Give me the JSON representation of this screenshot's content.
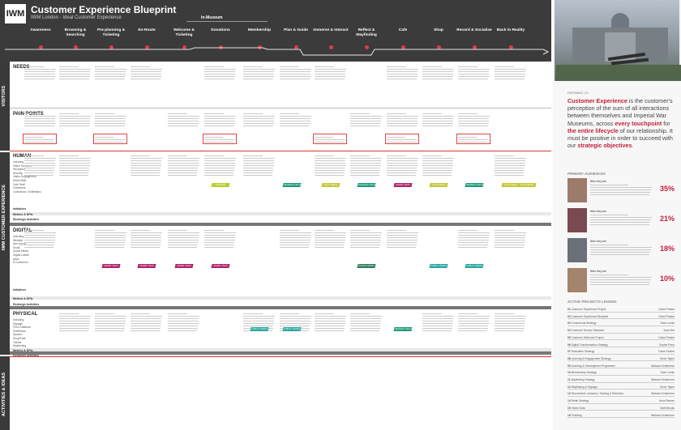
{
  "header": {
    "logo_text": "IWM",
    "title": "Customer Experience Blueprint",
    "subtitle": "IWM London - Ideal Customer Experience",
    "in_museum_label": "In-Museum",
    "stages": [
      "Awareness",
      "Browsing & Searching",
      "Pre-planning & Ticketing",
      "En-Route",
      "Welcome & Ticketing",
      "Donations",
      "Membership",
      "Plan & Guide",
      "Immerse & Interact",
      "Reflect & Wayfinding",
      "Cafe",
      "Shop",
      "Record & Socialise",
      "Back to Reality"
    ]
  },
  "left_tabs": {
    "visitors": "VISITORS",
    "iwm": "IWM CUSTOMER EXPERIENCE",
    "activities": "ACTIVITIES & IDEAS"
  },
  "rows": {
    "needs": "NEEDS",
    "pain_points": "PAIN POINTS",
    "human": "HUMAN",
    "human_sub": "Including\nVisitor Services\nReception\nSecurity\nVisitor Engagement\nRetail Staff\nCafe Staff\nVolunteers\nCollections / Exhibitions",
    "digital": "DIGITAL",
    "digital_sub": "Including\nWebsite\niwm.org.uk\nEmail\nSocial Media\nDigital Labels\nApps\nE-commerce",
    "physical": "PHYSICAL",
    "physical_sub": "Including\nSignage\nPrint Collateral\nExhibitions\nSpaces\nShop/Cafe\nTickets\nWayfinding",
    "initiatives": "Initiatives",
    "metrics": "Metrics & KPIs",
    "redesign": "Redesign Activities"
  },
  "tags": {
    "human": [
      "Gratitude",
      "Hardware Need",
      "Core Values",
      "Hardware Need",
      "Mobile Youth",
      "Core Values",
      "Hardware Need",
      "Core Values",
      "Core Values"
    ],
    "digital": [
      "Mobile Youth",
      "Mobile Youth",
      "Mobile Youth",
      "Mobile Youth",
      "School Visitors",
      "Culture Visitors",
      "Culture Visitors"
    ],
    "physical": [
      "Culture Visitors",
      "Culture Visitors",
      "Hardware Need"
    ]
  },
  "sidebar": {
    "defining_label": "DEFINING CX",
    "definition_parts": [
      "Customer Experience",
      " is the customer's perception of the sum of all interactions between themselves and Imperial War Museums, across ",
      "every touchpoint",
      " for ",
      "the entire lifecycle",
      " of our relationship. It must be positive in order to succeed with our ",
      "strategic objectives",
      "."
    ],
    "audiences_heading": "PRIMARY AUDIENCES",
    "audiences": [
      {
        "pct": "35%",
        "label": "Who they are"
      },
      {
        "pct": "21%",
        "label": "Who they are"
      },
      {
        "pct": "18%",
        "label": "Who they are"
      },
      {
        "pct": "10%",
        "label": "Who they are"
      }
    ],
    "legend_heading": "ACTIVE PROJECTS LEGEND",
    "legend": [
      {
        "num": "01",
        "name": "Customer Experience Project",
        "owner": "David Parkes"
      },
      {
        "num": "02",
        "name": "Customer Experience Blueprint",
        "owner": "David Parkes"
      },
      {
        "num": "03",
        "name": "Commercial Strategy",
        "owner": "Dave Leeks"
      },
      {
        "num": "04",
        "name": "Customer Service Standard",
        "owner": "Jane Kirk"
      },
      {
        "num": "05",
        "name": "Customer Welcome Project",
        "owner": "David Parkes"
      },
      {
        "num": "06",
        "name": "Digital Transformation Strategy",
        "owner": "Sophie Perry"
      },
      {
        "num": "07",
        "name": "Evaluation Strategy",
        "owner": "David Parkes"
      },
      {
        "num": "08",
        "name": "Learning & Engagement Strategy",
        "owner": "Kevin Taylor"
      },
      {
        "num": "09",
        "name": "Learning & Development Programme",
        "owner": "Barbara Scharmere"
      },
      {
        "num": "10",
        "name": "Membership Strategy",
        "owner": "Dave Leeks"
      },
      {
        "num": "11",
        "name": "Wayfinding Strategy",
        "owner": "Barbara Scharmere"
      },
      {
        "num": "12",
        "name": "Wayfinding & Signage",
        "owner": "Kevin Taylor"
      },
      {
        "num": "13",
        "name": "Recruitment, Induction, Training & Retention",
        "owner": "Barbara Scharmere"
      },
      {
        "num": "14",
        "name": "Retail Strategy",
        "owner": "Anne Barnes"
      },
      {
        "num": "15",
        "name": "Visitor Data",
        "owner": "Matt Brooks"
      },
      {
        "num": "16",
        "name": "Ticketing",
        "owner": "Barbara Scharmere"
      }
    ]
  }
}
